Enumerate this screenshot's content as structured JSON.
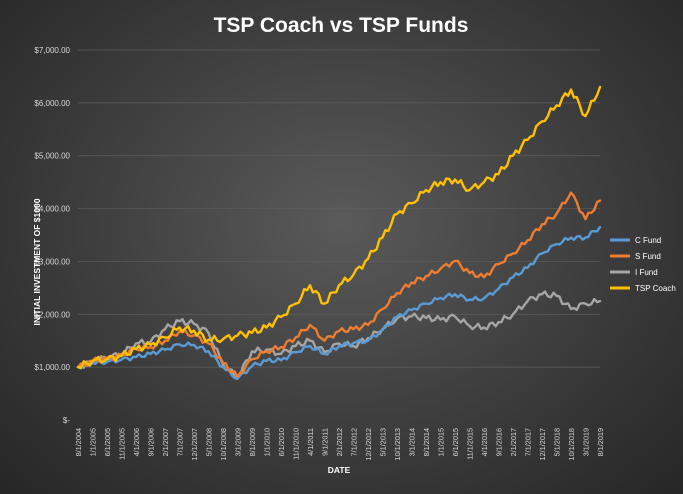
{
  "chart_data": {
    "type": "line",
    "title": "TSP Coach vs TSP Funds",
    "xlabel": "DATE",
    "ylabel": "INITIAL INVESTMENT OF $1000",
    "ylim": [
      0,
      7000
    ],
    "grid": true,
    "legend_position": "right",
    "y_ticks": [
      "$-",
      "$1,000.00",
      "$2,000.00",
      "$3,000.00",
      "$4,000.00",
      "$5,000.00",
      "$6,000.00",
      "$7,000.00"
    ],
    "x_ticks": [
      "8/1/2004",
      "1/1/2005",
      "6/1/2005",
      "11/1/2005",
      "4/1/2006",
      "9/1/2006",
      "2/1/2007",
      "7/1/2007",
      "12/1/2007",
      "5/1/2008",
      "10/1/2008",
      "3/1/2009",
      "8/1/2009",
      "1/1/2010",
      "6/1/2010",
      "11/1/2010",
      "4/1/2011",
      "9/1/2011",
      "2/1/2012",
      "7/1/2012",
      "12/1/2012",
      "5/1/2013",
      "10/1/2013",
      "3/1/2014",
      "8/1/2014",
      "1/1/2015",
      "6/1/2015",
      "11/1/2015",
      "4/1/2016",
      "9/1/2016",
      "2/1/2017",
      "7/1/2017",
      "12/1/2017",
      "5/1/2018",
      "10/1/2018",
      "3/1/2019",
      "8/1/2019"
    ],
    "x": [
      "8/1/2004",
      "1/1/2005",
      "6/1/2005",
      "11/1/2005",
      "4/1/2006",
      "9/1/2006",
      "2/1/2007",
      "7/1/2007",
      "12/1/2007",
      "5/1/2008",
      "10/1/2008",
      "3/1/2009",
      "8/1/2009",
      "1/1/2010",
      "6/1/2010",
      "11/1/2010",
      "4/1/2011",
      "9/1/2011",
      "2/1/2012",
      "7/1/2012",
      "12/1/2012",
      "5/1/2013",
      "10/1/2013",
      "3/1/2014",
      "8/1/2014",
      "1/1/2015",
      "6/1/2015",
      "11/1/2015",
      "4/1/2016",
      "9/1/2016",
      "2/1/2017",
      "7/1/2017",
      "12/1/2017",
      "5/1/2018",
      "10/1/2018",
      "3/1/2019",
      "8/1/2019"
    ],
    "series": [
      {
        "name": "C Fund",
        "color": "#5b9bd5",
        "values": [
          1000,
          1080,
          1100,
          1140,
          1190,
          1250,
          1330,
          1430,
          1420,
          1300,
          1000,
          780,
          1020,
          1120,
          1130,
          1280,
          1400,
          1250,
          1400,
          1460,
          1500,
          1700,
          1950,
          2080,
          2200,
          2310,
          2380,
          2280,
          2300,
          2480,
          2700,
          2880,
          3150,
          3330,
          3450,
          3450,
          3650
        ]
      },
      {
        "name": "S Fund",
        "color": "#ed7d31",
        "values": [
          1000,
          1120,
          1160,
          1220,
          1350,
          1380,
          1500,
          1680,
          1600,
          1450,
          1080,
          820,
          1150,
          1300,
          1380,
          1560,
          1800,
          1500,
          1680,
          1720,
          1800,
          2100,
          2400,
          2600,
          2720,
          2860,
          3010,
          2780,
          2700,
          2950,
          3150,
          3400,
          3700,
          3900,
          4300,
          3800,
          4150
        ]
      },
      {
        "name": "I Fund",
        "color": "#a5a5a5",
        "values": [
          1000,
          1100,
          1180,
          1250,
          1450,
          1480,
          1720,
          1870,
          1820,
          1650,
          1050,
          800,
          1300,
          1330,
          1250,
          1400,
          1500,
          1280,
          1450,
          1400,
          1550,
          1720,
          1920,
          1960,
          1930,
          1900,
          1960,
          1780,
          1750,
          1850,
          2000,
          2250,
          2380,
          2350,
          2100,
          2200,
          2250
        ]
      },
      {
        "name": "TSP Coach",
        "color": "#ffc000",
        "values": [
          1000,
          1120,
          1150,
          1210,
          1340,
          1420,
          1560,
          1750,
          1690,
          1520,
          1530,
          1600,
          1650,
          1750,
          1950,
          2200,
          2550,
          2200,
          2550,
          2750,
          3050,
          3450,
          3900,
          4100,
          4350,
          4500,
          4550,
          4350,
          4500,
          4650,
          5000,
          5300,
          5650,
          5950,
          6250,
          5750,
          6300
        ]
      }
    ]
  }
}
